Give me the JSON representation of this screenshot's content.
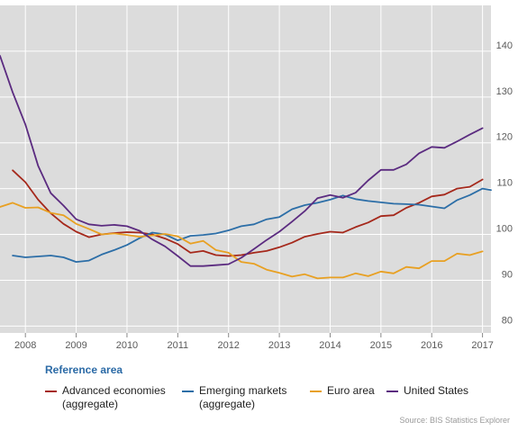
{
  "chart_data": {
    "type": "line",
    "x_ticks": [
      "2008",
      "2009",
      "2010",
      "2011",
      "2012",
      "2013",
      "2014",
      "2015",
      "2016",
      "2017"
    ],
    "y_ticks": [
      80,
      90,
      100,
      110,
      120,
      130,
      140
    ],
    "xlim": [
      "2007-07-01",
      "2017-03-01"
    ],
    "ylim": [
      78.5,
      150
    ],
    "grid": true,
    "y_axis_side": "right",
    "legend_position": "bottom",
    "series": [
      {
        "name": "Advanced economies\n(aggregate)",
        "color": "#a5281b",
        "points": [
          [
            "2007-10-01",
            114.0
          ],
          [
            "2008-01-01",
            111.4
          ],
          [
            "2008-04-01",
            107.6
          ],
          [
            "2008-07-01",
            104.6
          ],
          [
            "2008-10-01",
            102.3
          ],
          [
            "2009-01-01",
            100.6
          ],
          [
            "2009-04-01",
            99.4
          ],
          [
            "2009-07-01",
            100.0
          ],
          [
            "2009-10-01",
            100.3
          ],
          [
            "2010-01-01",
            100.5
          ],
          [
            "2010-04-01",
            100.4
          ],
          [
            "2010-07-01",
            100.0
          ],
          [
            "2010-10-01",
            99.1
          ],
          [
            "2011-01-01",
            97.9
          ],
          [
            "2011-04-01",
            96.0
          ],
          [
            "2011-07-01",
            96.4
          ],
          [
            "2011-10-01",
            95.5
          ],
          [
            "2012-01-01",
            95.3
          ],
          [
            "2012-04-01",
            95.5
          ],
          [
            "2012-07-01",
            96.0
          ],
          [
            "2012-10-01",
            96.4
          ],
          [
            "2013-01-01",
            97.2
          ],
          [
            "2013-04-01",
            98.2
          ],
          [
            "2013-07-01",
            99.5
          ],
          [
            "2013-10-01",
            100.1
          ],
          [
            "2014-01-01",
            100.6
          ],
          [
            "2014-04-01",
            100.4
          ],
          [
            "2014-07-01",
            101.6
          ],
          [
            "2014-10-01",
            102.6
          ],
          [
            "2015-01-01",
            104.0
          ],
          [
            "2015-04-01",
            104.2
          ],
          [
            "2015-07-01",
            105.8
          ],
          [
            "2015-10-01",
            106.9
          ],
          [
            "2016-01-01",
            108.3
          ],
          [
            "2016-04-01",
            108.7
          ],
          [
            "2016-07-01",
            110.0
          ],
          [
            "2016-10-01",
            110.4
          ],
          [
            "2017-01-01",
            112.0
          ]
        ]
      },
      {
        "name": "Emerging markets\n(aggregate)",
        "color": "#2c6ea7",
        "points": [
          [
            "2007-10-01",
            95.4
          ],
          [
            "2008-01-01",
            95.0
          ],
          [
            "2008-04-01",
            95.2
          ],
          [
            "2008-07-01",
            95.4
          ],
          [
            "2008-10-01",
            95.0
          ],
          [
            "2009-01-01",
            94.0
          ],
          [
            "2009-04-01",
            94.3
          ],
          [
            "2009-07-01",
            95.6
          ],
          [
            "2009-10-01",
            96.6
          ],
          [
            "2010-01-01",
            97.7
          ],
          [
            "2010-04-01",
            99.2
          ],
          [
            "2010-07-01",
            100.4
          ],
          [
            "2010-10-01",
            100.0
          ],
          [
            "2011-01-01",
            98.7
          ],
          [
            "2011-04-01",
            99.7
          ],
          [
            "2011-07-01",
            99.9
          ],
          [
            "2011-10-01",
            100.2
          ],
          [
            "2012-01-01",
            100.9
          ],
          [
            "2012-04-01",
            101.8
          ],
          [
            "2012-07-01",
            102.2
          ],
          [
            "2012-10-01",
            103.3
          ],
          [
            "2013-01-01",
            103.8
          ],
          [
            "2013-04-01",
            105.5
          ],
          [
            "2013-07-01",
            106.4
          ],
          [
            "2013-10-01",
            106.9
          ],
          [
            "2014-01-01",
            107.6
          ],
          [
            "2014-04-01",
            108.5
          ],
          [
            "2014-07-01",
            107.7
          ],
          [
            "2014-10-01",
            107.3
          ],
          [
            "2015-01-01",
            107.0
          ],
          [
            "2015-04-01",
            106.7
          ],
          [
            "2015-07-01",
            106.6
          ],
          [
            "2015-10-01",
            106.5
          ],
          [
            "2016-01-01",
            106.1
          ],
          [
            "2016-04-01",
            105.7
          ],
          [
            "2016-07-01",
            107.5
          ],
          [
            "2016-10-01",
            108.6
          ],
          [
            "2017-01-01",
            110.0
          ],
          [
            "2017-03-01",
            109.7
          ]
        ]
      },
      {
        "name": "Euro area",
        "color": "#e8a022",
        "points": [
          [
            "2007-07-01",
            106.0
          ],
          [
            "2007-10-01",
            106.9
          ],
          [
            "2008-01-01",
            105.8
          ],
          [
            "2008-04-01",
            105.9
          ],
          [
            "2008-07-01",
            104.7
          ],
          [
            "2008-10-01",
            104.2
          ],
          [
            "2009-01-01",
            102.3
          ],
          [
            "2009-04-01",
            101.2
          ],
          [
            "2009-07-01",
            100.0
          ],
          [
            "2009-10-01",
            100.2
          ],
          [
            "2010-01-01",
            99.9
          ],
          [
            "2010-04-01",
            99.5
          ],
          [
            "2010-07-01",
            99.8
          ],
          [
            "2010-10-01",
            100.1
          ],
          [
            "2011-01-01",
            99.6
          ],
          [
            "2011-04-01",
            98.0
          ],
          [
            "2011-07-01",
            98.6
          ],
          [
            "2011-10-01",
            96.6
          ],
          [
            "2012-01-01",
            96.0
          ],
          [
            "2012-04-01",
            94.0
          ],
          [
            "2012-07-01",
            93.6
          ],
          [
            "2012-10-01",
            92.3
          ],
          [
            "2013-01-01",
            91.6
          ],
          [
            "2013-04-01",
            90.8
          ],
          [
            "2013-07-01",
            91.3
          ],
          [
            "2013-10-01",
            90.4
          ],
          [
            "2014-01-01",
            90.6
          ],
          [
            "2014-04-01",
            90.6
          ],
          [
            "2014-07-01",
            91.5
          ],
          [
            "2014-10-01",
            90.9
          ],
          [
            "2015-01-01",
            91.9
          ],
          [
            "2015-04-01",
            91.5
          ],
          [
            "2015-07-01",
            92.9
          ],
          [
            "2015-10-01",
            92.6
          ],
          [
            "2016-01-01",
            94.2
          ],
          [
            "2016-04-01",
            94.2
          ],
          [
            "2016-07-01",
            95.8
          ],
          [
            "2016-10-01",
            95.5
          ],
          [
            "2017-01-01",
            96.3
          ]
        ]
      },
      {
        "name": "United States",
        "color": "#5b2b80",
        "points": [
          [
            "2007-07-01",
            139.0
          ],
          [
            "2007-10-01",
            131.0
          ],
          [
            "2008-01-01",
            124.0
          ],
          [
            "2008-04-01",
            115.0
          ],
          [
            "2008-07-01",
            109.0
          ],
          [
            "2008-10-01",
            106.3
          ],
          [
            "2009-01-01",
            103.3
          ],
          [
            "2009-04-01",
            102.2
          ],
          [
            "2009-07-01",
            101.9
          ],
          [
            "2009-10-01",
            102.1
          ],
          [
            "2010-01-01",
            101.8
          ],
          [
            "2010-04-01",
            100.8
          ],
          [
            "2010-07-01",
            98.9
          ],
          [
            "2010-10-01",
            97.4
          ],
          [
            "2011-01-01",
            95.3
          ],
          [
            "2011-04-01",
            93.1
          ],
          [
            "2011-07-01",
            93.1
          ],
          [
            "2011-10-01",
            93.3
          ],
          [
            "2012-01-01",
            93.5
          ],
          [
            "2012-04-01",
            94.9
          ],
          [
            "2012-07-01",
            96.8
          ],
          [
            "2012-10-01",
            98.8
          ],
          [
            "2013-01-01",
            100.6
          ],
          [
            "2013-04-01",
            102.8
          ],
          [
            "2013-07-01",
            105.1
          ],
          [
            "2013-10-01",
            107.9
          ],
          [
            "2014-01-01",
            108.6
          ],
          [
            "2014-04-01",
            108.0
          ],
          [
            "2014-07-01",
            109.1
          ],
          [
            "2014-10-01",
            111.8
          ],
          [
            "2015-01-01",
            114.1
          ],
          [
            "2015-04-01",
            114.1
          ],
          [
            "2015-07-01",
            115.3
          ],
          [
            "2015-10-01",
            117.7
          ],
          [
            "2016-01-01",
            119.1
          ],
          [
            "2016-04-01",
            118.9
          ],
          [
            "2016-07-01",
            120.3
          ],
          [
            "2016-10-01",
            121.8
          ],
          [
            "2017-01-01",
            123.2
          ]
        ]
      }
    ]
  },
  "legend": {
    "title": "Reference area",
    "items": [
      "Advanced economies\n(aggregate)",
      "Emerging markets\n(aggregate)",
      "Euro area",
      "United States"
    ]
  },
  "source": "Source: BIS Statistics Explorer"
}
